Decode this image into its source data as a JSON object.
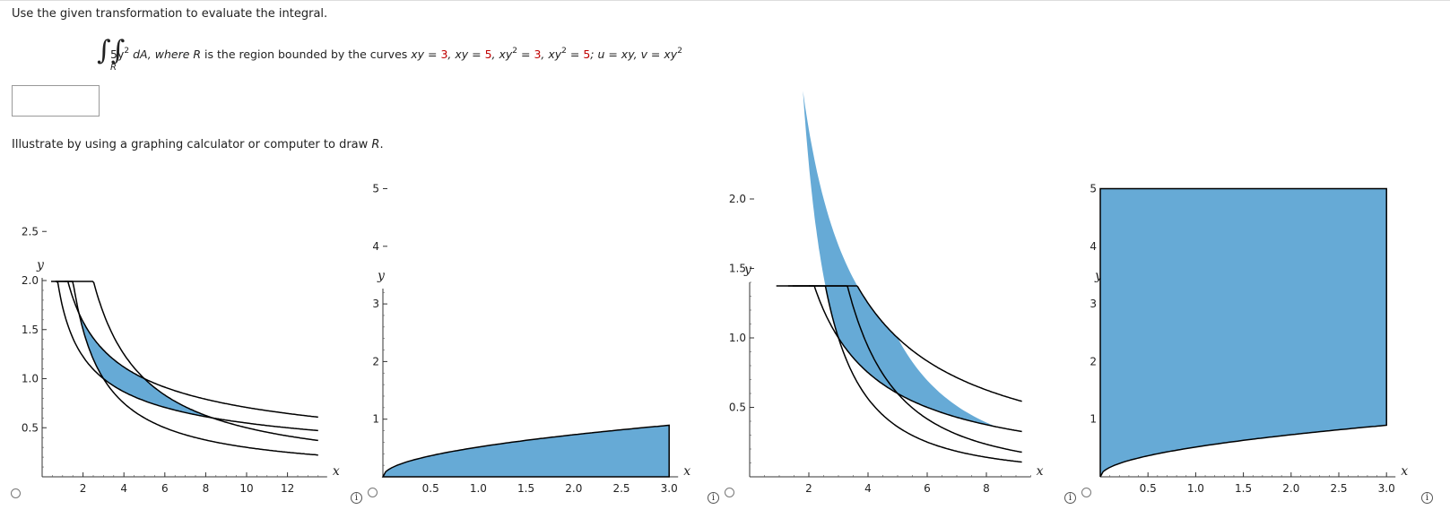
{
  "prompt": "Use the given transformation to evaluate the integral.",
  "problem": {
    "integrand": "5y",
    "integrand_exp": "2",
    "dA": " dA, where ",
    "region_var": "R",
    "bounded": " is the region bounded by the curves ",
    "c1_lhs": "xy = ",
    "c1_val": "3",
    "c2_lhs": ", xy = ",
    "c2_val": "5",
    "c3_lhs": ", xy",
    "c3_exp": "2",
    "c3_eq": " = ",
    "c3_val": "3",
    "c4_lhs": ", xy",
    "c4_exp": "2",
    "c4_eq": " = ",
    "c4_val": "5",
    "transform": "; u = xy, v = xy",
    "transform_exp": "2",
    "sub_region": "R"
  },
  "answer": {
    "value": ""
  },
  "illustrate": {
    "text_before": "Illustrate by using a graphing calculator or computer to draw ",
    "var": "R",
    "text_after": "."
  },
  "colors": {
    "fill": "#66aad6",
    "curve": "#000000"
  },
  "graphs": [
    {
      "option": 1,
      "xlabel": "x",
      "ylabel": "y",
      "xticks": [
        "2",
        "4",
        "6",
        "8",
        "10",
        "12"
      ],
      "yticks": [
        "0.5",
        "1.0",
        "1.5",
        "2.0",
        "2.5"
      ]
    },
    {
      "option": 2,
      "xlabel": "x",
      "ylabel": "y",
      "xticks": [
        "0.5",
        "1.0",
        "1.5",
        "2.0",
        "2.5",
        "3.0"
      ],
      "yticks": [
        "1",
        "2",
        "3",
        "4",
        "5"
      ]
    },
    {
      "option": 3,
      "xlabel": "x",
      "ylabel": "y",
      "xticks": [
        "2",
        "4",
        "6",
        "8"
      ],
      "yticks": [
        "0.5",
        "1.0",
        "1.5",
        "2.0"
      ]
    },
    {
      "option": 4,
      "xlabel": "x",
      "ylabel": "y",
      "xticks": [
        "0.5",
        "1.0",
        "1.5",
        "2.0",
        "2.5",
        "3.0"
      ],
      "yticks": [
        "1",
        "2",
        "3",
        "4",
        "5"
      ]
    }
  ],
  "chart_data": [
    {
      "type": "line",
      "xlim": [
        0,
        13.5
      ],
      "ylim": [
        0,
        2.8
      ],
      "series": [
        {
          "curve": "xy=3"
        },
        {
          "curve": "xy=5"
        },
        {
          "curve": "xy^2=3"
        },
        {
          "curve": "xy^2=5"
        }
      ],
      "shaded_region": "bounded by xy=3, xy=5, xy^2=3, xy^2=5"
    },
    {
      "type": "area",
      "xlim": [
        0,
        3
      ],
      "ylim": [
        0,
        5.2
      ],
      "shaded_region": "0<=x<=3, 0<=y<=sqrt(x)/sqrt(15)"
    },
    {
      "type": "line",
      "xlim": [
        0,
        9.2
      ],
      "ylim": [
        0,
        2.05
      ],
      "series": [
        {
          "curve": "xy=3"
        },
        {
          "curve": "xy=5"
        },
        {
          "curve": "x^2y=3"
        },
        {
          "curve": "x^2y=5"
        }
      ],
      "shaded_region": "bounded by xy=3, xy=5, x^2y=3, x^2y=5"
    },
    {
      "type": "area",
      "xlim": [
        0,
        3
      ],
      "ylim": [
        0,
        5.2
      ],
      "shaded_region": "0<=x<=3, sqrt(x)/sqrt(15)<=y<=5"
    }
  ],
  "info_glyph": "i"
}
